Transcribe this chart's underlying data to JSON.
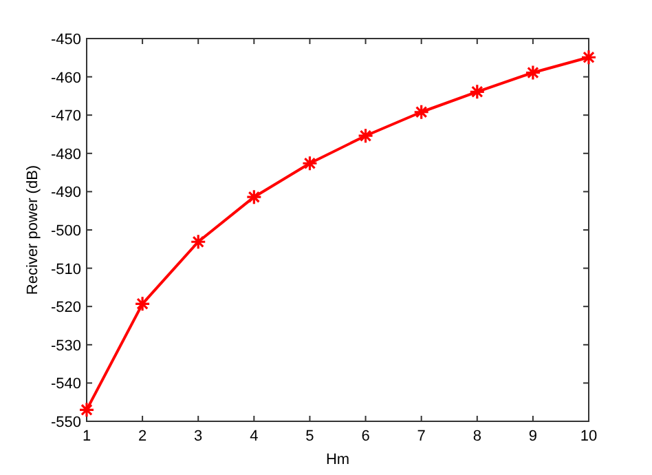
{
  "chart_data": {
    "type": "line",
    "xlabel": "Hm",
    "ylabel": "Reciver power (dB)",
    "x": [
      1,
      2,
      3,
      4,
      5,
      6,
      7,
      8,
      9,
      10
    ],
    "series": [
      {
        "color": "#ff0000",
        "values": [
          -547,
          -519.3,
          -503.1,
          -491.4,
          -482.6,
          -475.4,
          -469.2,
          -463.9,
          -458.9,
          -454.9
        ]
      }
    ],
    "xlim": [
      1,
      10
    ],
    "xticks": [
      1,
      2,
      3,
      4,
      5,
      6,
      7,
      8,
      9,
      10
    ],
    "ylim": [
      -550,
      -450
    ],
    "yticks": [
      -550,
      -540,
      -530,
      -520,
      -510,
      -500,
      -490,
      -480,
      -470,
      -460,
      -450
    ],
    "grid": false,
    "marker": "cross",
    "line_style": "solid"
  }
}
